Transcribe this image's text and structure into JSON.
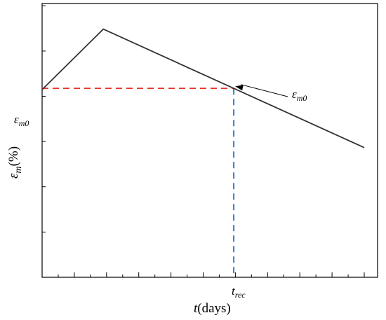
{
  "chart_data": {
    "type": "line",
    "xlabel": {
      "var": "t",
      "unit": "(days)"
    },
    "ylabel": {
      "var": "ε",
      "sub": "m",
      "unit": "(%)"
    },
    "y_marker_label": {
      "base": "ε",
      "sub": "m0"
    },
    "x_marker_label": {
      "base": "t",
      "sub": "rec"
    },
    "annotation": {
      "base": "ε",
      "sub": "m0"
    },
    "xlim": [
      0,
      100
    ],
    "ylim": [
      0,
      100
    ],
    "series": [
      {
        "points": [
          {
            "x": 0,
            "y": 70
          },
          {
            "x": 19,
            "y": 94
          },
          {
            "x": 59.5,
            "y": 70.5
          },
          {
            "x": 100,
            "y": 47
          }
        ]
      }
    ],
    "marker_point": {
      "x": 59.5,
      "y": 70.5
    },
    "x_minor_ticks": 20,
    "y_ticks": 6,
    "colors": {
      "curve": "#333333",
      "ref_horizontal": "#e8332a",
      "ref_vertical": "#1f6fbf"
    }
  }
}
